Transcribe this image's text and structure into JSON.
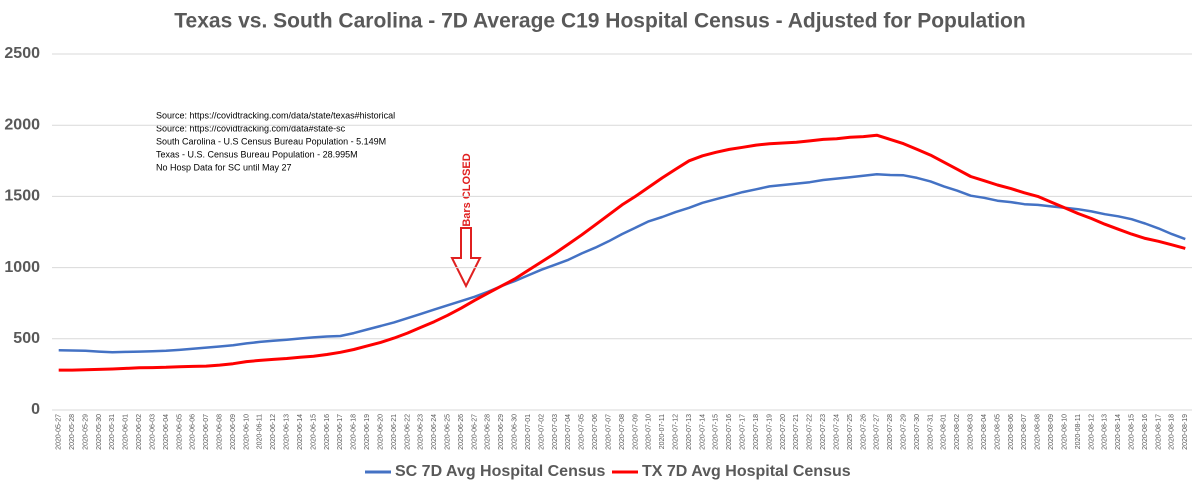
{
  "chart_data": {
    "type": "line",
    "title": "Texas vs. South Carolina - 7D Average C19 Hospital Census - Adjusted for Population",
    "annotations": [
      "Source:  https://covidtracking.com/data/state/texas#historical",
      "Source:  https://covidtracking.com/data#state-sc",
      "South Carolina - U.S Census Bureau Population - 5.149M",
      "Texas - U.S. Census Bureau Population - 28.995M",
      "No Hosp Data for SC until May 27"
    ],
    "event_label": "Bars CLOSED",
    "x": [
      "2020-05-27",
      "2020-05-28",
      "2020-05-29",
      "2020-05-30",
      "2020-05-31",
      "2020-06-01",
      "2020-06-02",
      "2020-06-03",
      "2020-06-04",
      "2020-06-05",
      "2020-06-06",
      "2020-06-07",
      "2020-06-08",
      "2020-06-09",
      "2020-06-10",
      "2020-06-11",
      "2020-06-12",
      "2020-06-13",
      "2020-06-14",
      "2020-06-15",
      "2020-06-16",
      "2020-06-17",
      "2020-06-18",
      "2020-06-19",
      "2020-06-20",
      "2020-06-21",
      "2020-06-22",
      "2020-06-23",
      "2020-06-24",
      "2020-06-25",
      "2020-06-26",
      "2020-06-27",
      "2020-06-28",
      "2020-06-29",
      "2020-06-30",
      "2020-07-01",
      "2020-07-02",
      "2020-07-03",
      "2020-07-04",
      "2020-07-05",
      "2020-07-06",
      "2020-07-07",
      "2020-07-08",
      "2020-07-09",
      "2020-07-10",
      "2020-07-11",
      "2020-07-12",
      "2020-07-13",
      "2020-07-14",
      "2020-07-15",
      "2020-07-16",
      "2020-07-17",
      "2020-07-18",
      "2020-07-19",
      "2020-07-20",
      "2020-07-21",
      "2020-07-22",
      "2020-07-23",
      "2020-07-24",
      "2020-07-25",
      "2020-07-26",
      "2020-07-27",
      "2020-07-28",
      "2020-07-29",
      "2020-07-30",
      "2020-07-31",
      "2020-08-01",
      "2020-08-02",
      "2020-08-03",
      "2020-08-04",
      "2020-08-05",
      "2020-08-06",
      "2020-08-07",
      "2020-08-08",
      "2020-08-09",
      "2020-08-10",
      "2020-08-11",
      "2020-08-12",
      "2020-08-13",
      "2020-08-14",
      "2020-08-15",
      "2020-08-16",
      "2020-08-17",
      "2020-08-18",
      "2020-08-19"
    ],
    "series": [
      {
        "name": "SC 7D Avg Hospital Census",
        "color": "#4472c4",
        "values": [
          420,
          418,
          416,
          410,
          405,
          408,
          410,
          412,
          416,
          422,
          430,
          438,
          446,
          455,
          468,
          478,
          486,
          494,
          502,
          510,
          516,
          520,
          540,
          565,
          590,
          615,
          645,
          675,
          705,
          735,
          765,
          795,
          830,
          870,
          905,
          945,
          985,
          1020,
          1055,
          1100,
          1140,
          1185,
          1235,
          1280,
          1325,
          1355,
          1390,
          1420,
          1455,
          1480,
          1505,
          1530,
          1550,
          1570,
          1580,
          1590,
          1600,
          1615,
          1625,
          1635,
          1645,
          1655,
          1650,
          1648,
          1630,
          1605,
          1570,
          1540,
          1505,
          1490,
          1470,
          1460,
          1445,
          1440,
          1430,
          1420,
          1410,
          1395,
          1375,
          1360,
          1340,
          1310,
          1275,
          1235,
          1200
        ]
      },
      {
        "name": "TX 7D Avg Hospital Census",
        "color": "#ff0000",
        "values": [
          280,
          280,
          282,
          285,
          288,
          292,
          296,
          298,
          300,
          304,
          306,
          308,
          315,
          325,
          340,
          348,
          355,
          362,
          370,
          378,
          390,
          405,
          425,
          450,
          475,
          505,
          540,
          580,
          620,
          665,
          715,
          770,
          820,
          870,
          920,
          980,
          1040,
          1100,
          1165,
          1230,
          1300,
          1370,
          1440,
          1500,
          1565,
          1630,
          1690,
          1750,
          1785,
          1810,
          1830,
          1845,
          1860,
          1870,
          1875,
          1880,
          1890,
          1900,
          1905,
          1915,
          1920,
          1930,
          1900,
          1870,
          1830,
          1790,
          1740,
          1690,
          1640,
          1610,
          1580,
          1555,
          1525,
          1500,
          1460,
          1420,
          1380,
          1345,
          1305,
          1270,
          1235,
          1205,
          1185,
          1160,
          1135
        ]
      }
    ],
    "ylim": [
      0,
      2500
    ],
    "yticks": [
      0,
      500,
      1000,
      1500,
      2000,
      2500
    ],
    "grid": true,
    "legend": "bottom"
  }
}
